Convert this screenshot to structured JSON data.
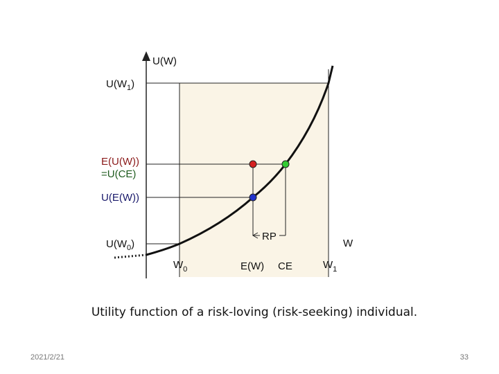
{
  "axes": {
    "y_label": "U(W)",
    "x_label": "W"
  },
  "y_labels": [
    {
      "base": "U(W",
      "sub": "1",
      "tail": ")"
    },
    {
      "line1": "E(U(W))",
      "line2": "=U(CE)"
    },
    {
      "base": "U(E(W))"
    },
    {
      "base": "U(W",
      "sub": "0",
      "tail": ")"
    }
  ],
  "x_labels": [
    {
      "base": "W",
      "sub": "0"
    },
    {
      "base": "E(W)"
    },
    {
      "base": "CE"
    },
    {
      "base": "W",
      "sub": "1"
    }
  ],
  "annotation": "RP",
  "caption": "Utility function of a risk-loving (risk-seeking) individual.",
  "footer": {
    "date": "2021/2/21",
    "page": "33"
  }
}
